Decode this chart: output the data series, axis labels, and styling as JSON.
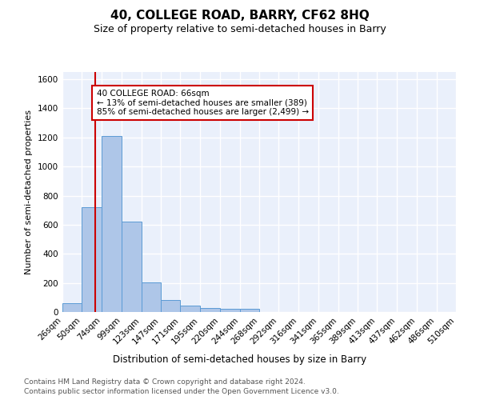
{
  "title": "40, COLLEGE ROAD, BARRY, CF62 8HQ",
  "subtitle": "Size of property relative to semi-detached houses in Barry",
  "xlabel": "Distribution of semi-detached houses by size in Barry",
  "ylabel": "Number of semi-detached properties",
  "footnote1": "Contains HM Land Registry data © Crown copyright and database right 2024.",
  "footnote2": "Contains public sector information licensed under the Open Government Licence v3.0.",
  "bins": [
    26,
    50,
    74,
    99,
    123,
    147,
    171,
    195,
    220,
    244,
    268,
    292,
    316,
    341,
    365,
    389,
    413,
    437,
    462,
    486,
    510
  ],
  "bin_labels": [
    "26sqm",
    "50sqm",
    "74sqm",
    "99sqm",
    "123sqm",
    "147sqm",
    "171sqm",
    "195sqm",
    "220sqm",
    "244sqm",
    "268sqm",
    "292sqm",
    "316sqm",
    "341sqm",
    "365sqm",
    "389sqm",
    "413sqm",
    "437sqm",
    "462sqm",
    "486sqm",
    "510sqm"
  ],
  "counts": [
    60,
    720,
    1210,
    620,
    205,
    80,
    42,
    28,
    20,
    20,
    0,
    0,
    0,
    0,
    0,
    0,
    0,
    0,
    0,
    0
  ],
  "bar_color": "#aec6e8",
  "bar_edge_color": "#5b9bd5",
  "property_sqm": 66,
  "property_line_color": "#cc0000",
  "annotation_line1": "40 COLLEGE ROAD: 66sqm",
  "annotation_line2": "← 13% of semi-detached houses are smaller (389)",
  "annotation_line3": "85% of semi-detached houses are larger (2,499) →",
  "annotation_box_color": "#ffffff",
  "annotation_box_edge_color": "#cc0000",
  "ylim": [
    0,
    1650
  ],
  "yticks": [
    0,
    200,
    400,
    600,
    800,
    1000,
    1200,
    1400,
    1600
  ],
  "bg_color": "#eaf0fb",
  "grid_color": "#ffffff",
  "title_fontsize": 11,
  "subtitle_fontsize": 9,
  "ylabel_fontsize": 8,
  "xlabel_fontsize": 8.5,
  "tick_fontsize": 7.5,
  "annotation_fontsize": 7.5,
  "footnote_fontsize": 6.5
}
